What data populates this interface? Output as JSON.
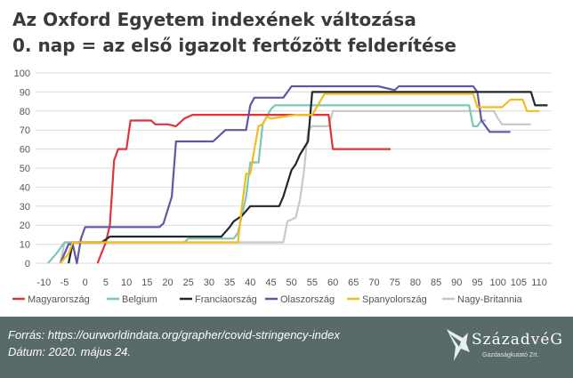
{
  "title_line1": "Az Oxford Egyetem indexének változása",
  "title_line2": "0. nap = az első igazolt fertőzött felderítése",
  "footer": {
    "source": "Forrás: https://ourworldindata.org/grapher/covid-stringency-index",
    "date": "Dátum: 2020. május 24."
  },
  "logo": {
    "name": "SzázadvéG",
    "subtitle": "Gazdaságkutató Zrt.",
    "icon": "eagle-wing-icon"
  },
  "chart_data": {
    "type": "line",
    "title": "Az Oxford Egyetem indexének változása",
    "xlim": [
      -12,
      113
    ],
    "ylim": [
      0,
      100
    ],
    "x_ticks": [
      -10,
      -5,
      0,
      5,
      10,
      15,
      20,
      25,
      30,
      35,
      40,
      45,
      50,
      55,
      60,
      65,
      70,
      75,
      80,
      85,
      90,
      95,
      100,
      105,
      110
    ],
    "x_tick_labels": [
      "-10",
      "-5",
      "0",
      "5",
      "10",
      "15",
      "20",
      "25",
      "30",
      "35",
      "40",
      "45",
      "50",
      "55",
      "60",
      "65",
      "70",
      "75",
      "80",
      "85",
      "90",
      "95",
      "100",
      "105",
      "110"
    ],
    "y_ticks": [
      0,
      10,
      20,
      30,
      40,
      50,
      60,
      70,
      80,
      90,
      100
    ],
    "y_tick_labels": [
      "0",
      "10",
      "20",
      "30",
      "40",
      "50",
      "60",
      "70",
      "80",
      "90",
      "100"
    ],
    "grid": "horizontal",
    "legend_position": "bottom",
    "series": [
      {
        "name": "Magyarország",
        "color": "#e0333b",
        "x": [
          3,
          5,
          6,
          7,
          8,
          10,
          11,
          16,
          17,
          20,
          22,
          24,
          26,
          29,
          46,
          57,
          59,
          60,
          62,
          74
        ],
        "y": [
          0,
          11,
          20,
          54,
          60,
          60,
          75,
          75,
          73,
          73,
          72,
          76,
          78,
          78,
          78,
          78,
          78,
          60,
          60,
          60
        ]
      },
      {
        "name": "Belgium",
        "color": "#7cc7b8",
        "x": [
          -9,
          -7,
          -5,
          -4,
          -2,
          0,
          1,
          2,
          3,
          10,
          24,
          25,
          36,
          37,
          39,
          40,
          42,
          43,
          44,
          45,
          46,
          93,
          94,
          95,
          96,
          97
        ],
        "y": [
          0,
          5,
          11,
          11,
          11,
          11,
          11,
          11,
          11,
          11,
          11,
          13,
          13,
          16,
          35,
          53,
          53,
          73,
          77,
          81,
          83,
          83,
          72,
          72,
          75,
          75
        ]
      },
      {
        "name": "Franciaország",
        "color": "#1e2a2a",
        "x": [
          -4,
          -3,
          0,
          4,
          6,
          9,
          33,
          35,
          36,
          38,
          40,
          47,
          48,
          49,
          50,
          51,
          52,
          54,
          55,
          108,
          109,
          112
        ],
        "y": [
          0,
          11,
          11,
          11,
          14,
          14,
          14,
          19,
          22,
          25,
          30,
          30,
          35,
          42,
          49,
          52,
          57,
          64,
          90,
          90,
          83,
          83
        ]
      },
      {
        "name": "Olaszország",
        "color": "#6655a0",
        "x": [
          -6,
          -4,
          -3,
          -2,
          -1,
          0,
          18,
          19,
          21,
          22,
          26,
          29,
          31,
          34,
          36,
          39,
          40,
          41,
          47,
          48,
          50,
          71,
          75,
          76,
          94,
          95,
          96,
          98,
          103
        ],
        "y": [
          0,
          10,
          10,
          0,
          13,
          19,
          19,
          21,
          35,
          64,
          64,
          64,
          64,
          70,
          70,
          70,
          83,
          87,
          87,
          87,
          93,
          93,
          91,
          93,
          93,
          90,
          75,
          69,
          69
        ]
      },
      {
        "name": "Spanyolország",
        "color": "#f3bc1e",
        "x": [
          -6,
          -4,
          -3,
          4,
          14,
          35,
          37,
          38,
          39,
          40,
          41,
          42,
          43,
          44,
          45,
          51,
          53,
          55,
          58,
          94,
          95,
          100,
          101,
          103,
          104,
          106,
          107,
          110
        ],
        "y": [
          0,
          5,
          11,
          11,
          11,
          11,
          11,
          30,
          47,
          47,
          60,
          72,
          73,
          77,
          76,
          78,
          78,
          78,
          89,
          89,
          82,
          82,
          82,
          86,
          86,
          86,
          80,
          80
        ]
      },
      {
        "name": "Nagy-Britannia",
        "color": "#c8c8c8",
        "x": [
          -6,
          -5,
          0,
          1,
          2,
          3,
          4,
          20,
          22,
          48,
          49,
          51,
          52,
          53,
          54,
          55,
          57,
          59,
          60,
          62,
          99,
          100,
          101,
          108
        ],
        "y": [
          0,
          11,
          11,
          11,
          11,
          11,
          11,
          11,
          11,
          11,
          22,
          24,
          33,
          48,
          70,
          72,
          72,
          72,
          80,
          80,
          80,
          76,
          73,
          73
        ]
      }
    ]
  }
}
